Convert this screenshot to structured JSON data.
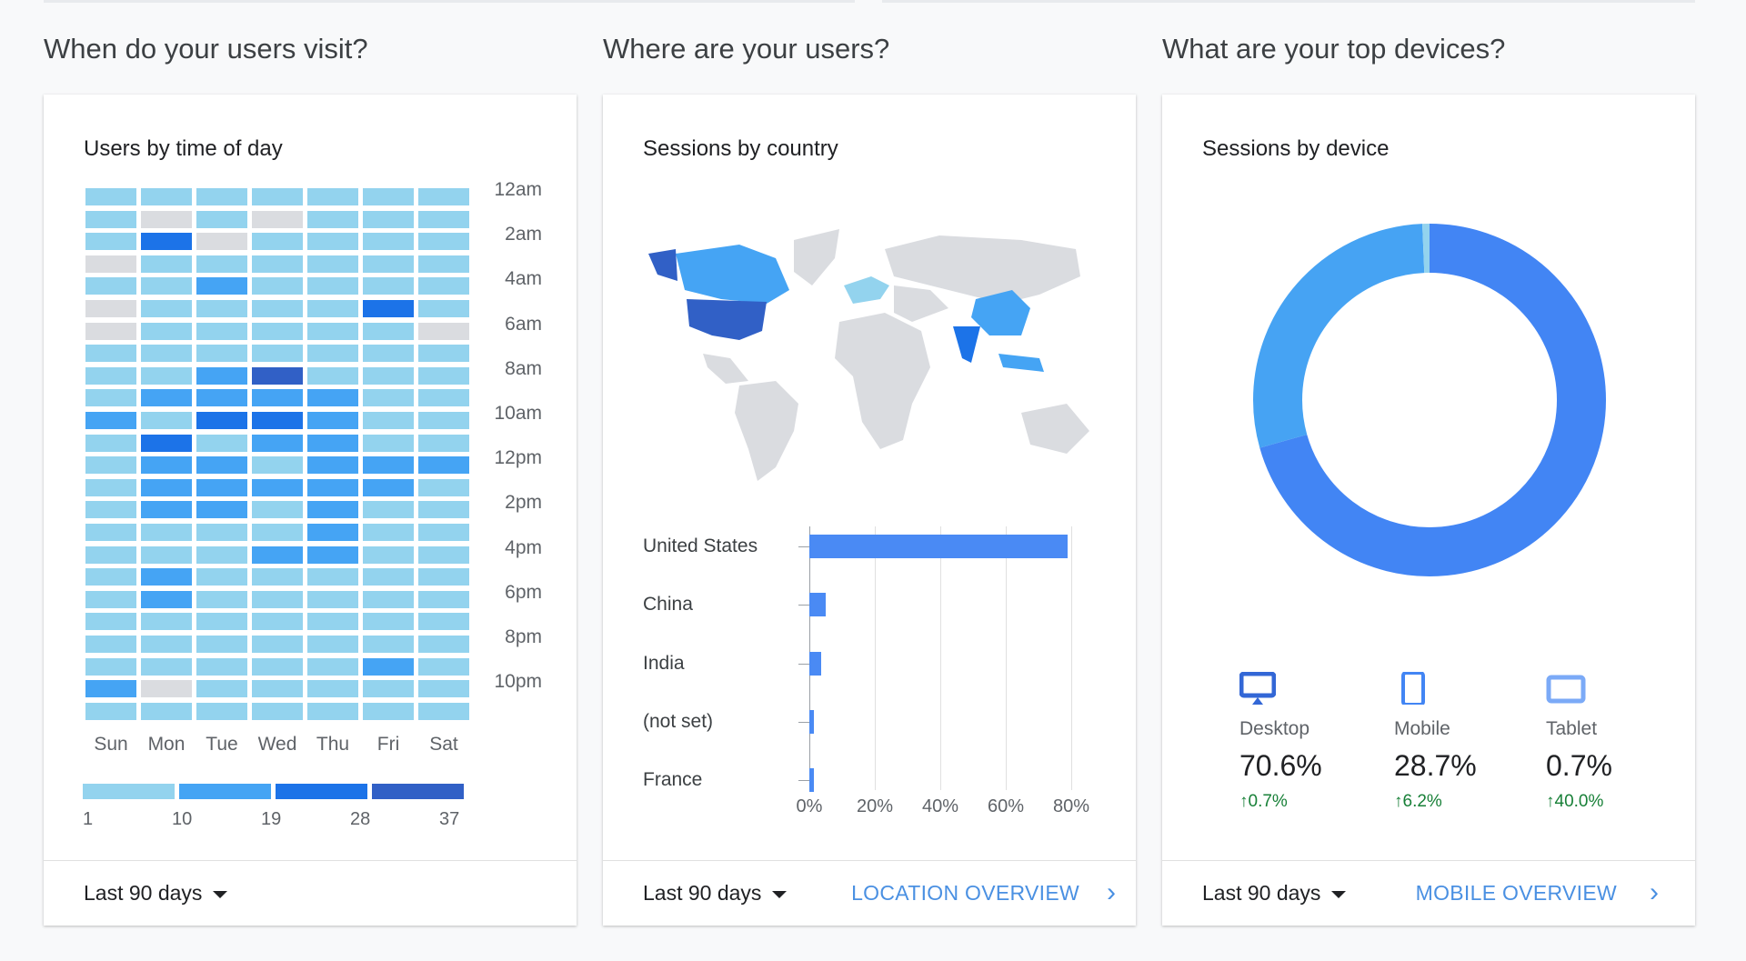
{
  "sections": [
    {
      "heading": "When do your users visit?",
      "card_title": "Users by time of day",
      "range": "Last 90 days"
    },
    {
      "heading": "Where are your users?",
      "card_title": "Sessions by country",
      "range": "Last 90 days",
      "link": "LOCATION OVERVIEW"
    },
    {
      "heading": "What are your top devices?",
      "card_title": "Sessions by device",
      "range": "Last 90 days",
      "link": "MOBILE OVERVIEW"
    }
  ],
  "heatmap": {
    "days": [
      "Sun",
      "Mon",
      "Tue",
      "Wed",
      "Thu",
      "Fri",
      "Sat"
    ],
    "hour_labels": [
      "12am",
      "2am",
      "4am",
      "6am",
      "8am",
      "10am",
      "12pm",
      "2pm",
      "4pm",
      "6pm",
      "8pm",
      "10pm"
    ],
    "legend": [
      "1",
      "10",
      "19",
      "28",
      "37"
    ],
    "colors": [
      "#dadce0",
      "#93d3ee",
      "#45a4f4",
      "#1c73e8",
      "#3160c6"
    ],
    "levels": [
      "1111111",
      "1010111",
      "1301111",
      "0111111",
      "1121111",
      "0111131",
      "0111110",
      "1111111",
      "1124111",
      "1222211",
      "2133211",
      "1312211",
      "1221222",
      "1222221",
      "1221211",
      "1111211",
      "1112211",
      "1211111",
      "1211111",
      "1111111",
      "1111111",
      "1111121",
      "2011111",
      "1111111"
    ]
  },
  "countries": {
    "labels": [
      "United States",
      "China",
      "India",
      "(not set)",
      "France"
    ],
    "values": [
      79,
      5,
      3.5,
      1.5,
      1.5
    ],
    "ticks": [
      "0%",
      "20%",
      "40%",
      "60%",
      "80%"
    ],
    "max": 80,
    "bar_color": "#4a8af4"
  },
  "devices": {
    "items": [
      {
        "name": "Desktop",
        "value": "70.6%",
        "change": "0.7%",
        "pct": 70.6,
        "color": "#4285f4",
        "icon": "desktop-icon"
      },
      {
        "name": "Mobile",
        "value": "28.7%",
        "change": "6.2%",
        "pct": 28.7,
        "color": "#46a3f3",
        "icon": "mobile-icon"
      },
      {
        "name": "Tablet",
        "value": "0.7%",
        "change": "40.0%",
        "pct": 0.7,
        "color": "#93d3ee",
        "icon": "tablet-icon"
      }
    ]
  }
}
